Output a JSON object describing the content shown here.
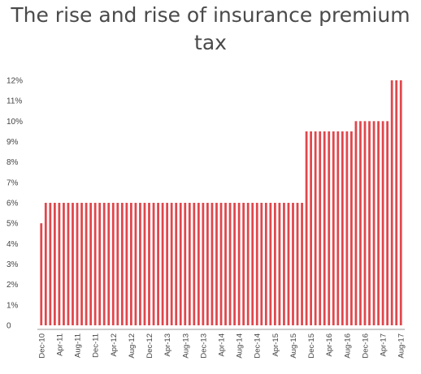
{
  "chart_data": {
    "type": "bar",
    "title": "The rise and rise of insurance premium tax",
    "xlabel": "",
    "ylabel": "",
    "ylim": [
      0,
      12
    ],
    "y_ticks": [
      "0",
      "1%",
      "2%",
      "3%",
      "4%",
      "5%",
      "6%",
      "7%",
      "8%",
      "9%",
      "10%",
      "11%",
      "12%"
    ],
    "x_tick_labels": [
      "Dec-10",
      "Apr-11",
      "Aug-11",
      "Dec-11",
      "Apr-12",
      "Aug-12",
      "Dec-12",
      "Apr-13",
      "Aug-13",
      "Dec-13",
      "Apr-14",
      "Aug-14",
      "Dec-14",
      "Apr-15",
      "Aug-15",
      "Dec-15",
      "Apr-16",
      "Aug-16",
      "Dec-16",
      "Apr-17",
      "Aug-17"
    ],
    "segments": [
      {
        "from": "Dec-10",
        "to": "Dec-10",
        "value": 5
      },
      {
        "from": "Jan-11",
        "to": "Oct-15",
        "value": 6
      },
      {
        "from": "Nov-15",
        "to": "Sep-16",
        "value": 9.5
      },
      {
        "from": "Oct-16",
        "to": "May-17",
        "value": 10
      },
      {
        "from": "Jun-17",
        "to": "Aug-17",
        "value": 12
      }
    ],
    "bar_color": "#e0474c",
    "grid": false
  }
}
